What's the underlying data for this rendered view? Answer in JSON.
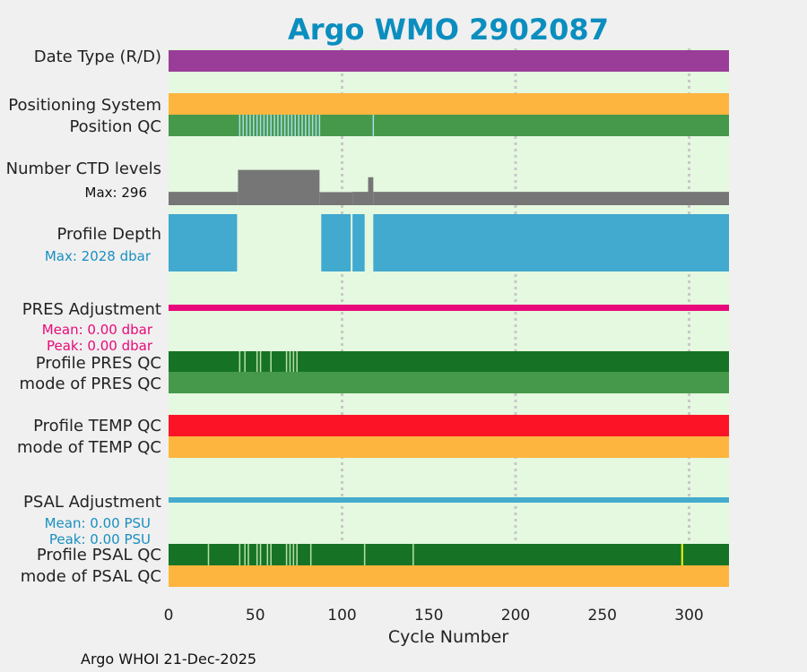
{
  "chart_data": {
    "type": "bar",
    "title": "Argo WMO 2902087",
    "xlabel": "Cycle Number",
    "xlim": [
      0,
      323
    ],
    "x_ticks": [
      "0",
      "50",
      "100",
      "150",
      "200",
      "250",
      "300"
    ],
    "x_tick_values": [
      0,
      50,
      100,
      150,
      200,
      250,
      300
    ],
    "grid_x": [
      100,
      200,
      300
    ],
    "footer": "Argo WHOI 21-Dec-2025",
    "rows": {
      "date_type": {
        "label": "Date Type (R/D)",
        "color": "#9a3d98",
        "from": 0,
        "to": 323
      },
      "positioning_system": {
        "label": "Positioning System",
        "color": "#fdb53f",
        "from": 0,
        "to": 323
      },
      "position_qc": {
        "label": "Position QC",
        "color": "#46994a",
        "gap_color": "#a8dbea",
        "gaps": [
          41,
          43,
          45,
          47,
          49,
          51,
          53,
          55,
          57,
          59,
          61,
          63,
          65,
          67,
          69,
          71,
          73,
          75,
          77,
          79,
          81,
          83,
          85,
          87,
          118
        ]
      },
      "ctd_levels": {
        "label": "Number CTD levels",
        "max_label": "Max: 296",
        "color": "#767676",
        "max": 296,
        "segments": [
          {
            "from": 0,
            "to": 40,
            "value": 100
          },
          {
            "from": 40,
            "to": 87,
            "value": 265
          },
          {
            "from": 87,
            "to": 106,
            "value": 98
          },
          {
            "from": 106,
            "to": 115,
            "value": 100
          },
          {
            "from": 115,
            "to": 118,
            "value": 210
          },
          {
            "from": 118,
            "to": 323,
            "value": 100
          }
        ]
      },
      "profile_depth": {
        "label": "Profile Depth",
        "max_label": "Max: 2028 dbar",
        "color": "#42a9cf",
        "label_color": "#1a8fc0",
        "segments": [
          {
            "from": 0,
            "to": 39.5,
            "top": 0,
            "bottom": 1.0
          },
          {
            "from": 39.5,
            "to": 88,
            "top": 0.12,
            "bottom": 0.12
          },
          {
            "from": 88,
            "to": 105,
            "top": 0,
            "bottom": 1.0
          },
          {
            "from": 106,
            "to": 113,
            "top": 0,
            "bottom": 1.0
          },
          {
            "from": 118,
            "to": 323,
            "top": 0,
            "bottom": 1.0
          }
        ]
      },
      "pres_adjustment": {
        "label": "PRES Adjustment",
        "mean_label": "Mean: 0.00 dbar",
        "peak_label": "Peak: 0.00 dbar",
        "color": "#e8097a"
      },
      "profile_pres_qc": {
        "label": "Profile PRES QC",
        "color": "#167326",
        "gap_color": "#b7e0a6",
        "gaps": [
          41,
          44,
          51,
          53,
          59,
          68,
          70,
          72,
          74
        ]
      },
      "mode_pres_qc": {
        "label": "mode of PRES QC",
        "color": "#46994a"
      },
      "profile_temp_qc": {
        "label": "Profile TEMP QC",
        "color": "#fc1426"
      },
      "mode_temp_qc": {
        "label": "mode of TEMP QC",
        "color": "#fdb53f"
      },
      "psal_adjustment": {
        "label": "PSAL Adjustment",
        "mean_label": "Mean: 0.00 PSU",
        "peak_label": "Peak: 0.00 PSU",
        "color": "#45acce",
        "label_color": "#1a8fc0"
      },
      "profile_psal_qc": {
        "label": "Profile PSAL QC",
        "color": "#167326",
        "gap_color": "#b7e0a6",
        "flag_color": "#f5f511",
        "gaps": [
          23,
          41,
          44,
          46,
          51,
          53,
          57,
          59,
          68,
          70,
          72,
          74,
          82,
          113,
          141
        ],
        "flags": [
          296
        ]
      },
      "mode_psal_qc": {
        "label": "mode of PSAL QC",
        "color": "#fdb53f"
      }
    }
  }
}
